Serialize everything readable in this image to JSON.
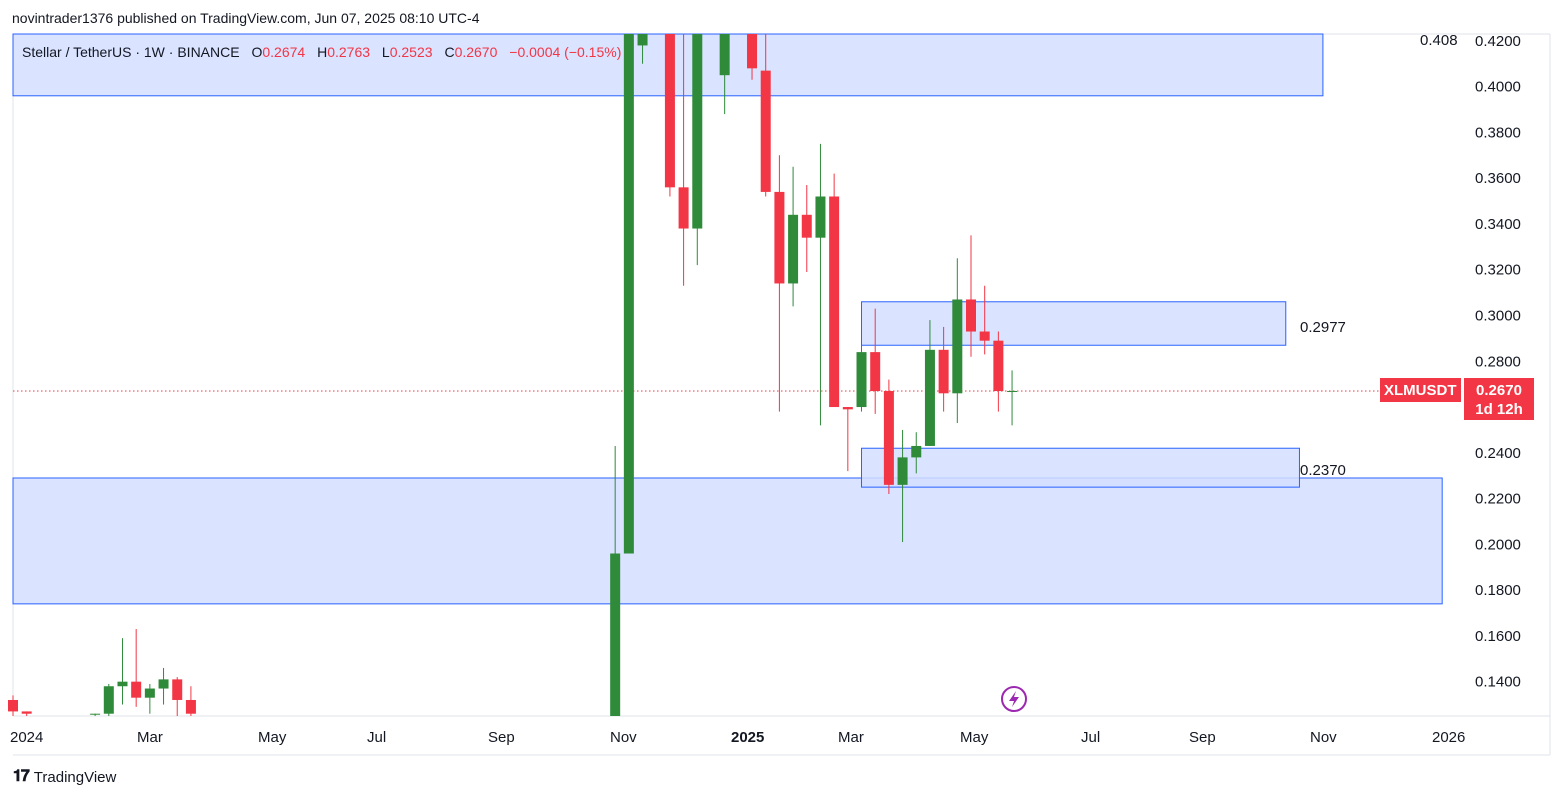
{
  "header": {
    "publish_text": "novintrader1376 published on TradingView.com, Jun 07, 2025 08:10 UTC-4"
  },
  "legend": {
    "symbol": "Stellar / TetherUS · 1W · BINANCE",
    "open_label": "O",
    "open": "0.2674",
    "high_label": "H",
    "high": "0.2763",
    "low_label": "L",
    "low": "0.2523",
    "close_label": "C",
    "close": "0.2670",
    "change": "−0.0004 (−0.15%)"
  },
  "price_tag": {
    "symbol": "XLMUSDT",
    "price": "0.2670",
    "countdown": "1d 12h"
  },
  "top_axis_extra": "0.408",
  "zone_labels": {
    "upper": "0.2977",
    "lower": "0.2370"
  },
  "brand": {
    "name": "TradingView"
  },
  "colors": {
    "up": "#2f8a3a",
    "down": "#f23645",
    "zone_fill": "#d4deff",
    "zone_stroke": "#2962ff",
    "price_line": "#f23645"
  },
  "chart_data": {
    "type": "candlestick",
    "timeframe": "1W",
    "y_axis": {
      "ticks": [
        0.14,
        0.16,
        0.18,
        0.2,
        0.22,
        0.24,
        0.26,
        0.28,
        0.3,
        0.32,
        0.34,
        0.36,
        0.38,
        0.4,
        0.42
      ],
      "tick_labels": [
        "0.1400",
        "0.1600",
        "0.1800",
        "0.2000",
        "0.2200",
        "0.2400",
        "0.2600",
        "0.2800",
        "0.3000",
        "0.3200",
        "0.3400",
        "0.3600",
        "0.3800",
        "0.4000",
        "0.4200"
      ],
      "range": [
        0.125,
        0.423
      ]
    },
    "x_axis": {
      "labels": [
        "2024",
        "Mar",
        "May",
        "Jul",
        "Sep",
        "Nov",
        "2025",
        "Mar",
        "May",
        "Jul",
        "Sep",
        "Nov",
        "2026"
      ],
      "bold_labels": [
        "2025"
      ]
    },
    "current_price": 0.267,
    "zones": [
      {
        "from": 0.396,
        "to": 0.423,
        "start": "2024-01",
        "end": "2025-11"
      },
      {
        "from": 0.174,
        "to": 0.229,
        "start": "2024-01",
        "end": "2026-01"
      },
      {
        "from": 0.287,
        "to": 0.306,
        "start": "2025-03-10",
        "end": "2025-10-13"
      },
      {
        "from": 0.225,
        "to": 0.242,
        "start": "2025-03-10",
        "end": "2025-10-20"
      }
    ],
    "candles": [
      {
        "date": "2024-01-01",
        "o": 0.132,
        "h": 0.134,
        "l": 0.125,
        "c": 0.127
      },
      {
        "date": "2024-01-08",
        "o": 0.127,
        "h": 0.127,
        "l": 0.125,
        "c": 0.126
      },
      {
        "date": "2024-02-12",
        "o": 0.126,
        "h": 0.126,
        "l": 0.125,
        "c": 0.126
      },
      {
        "date": "2024-02-19",
        "o": 0.126,
        "h": 0.139,
        "l": 0.125,
        "c": 0.138
      },
      {
        "date": "2024-02-26",
        "o": 0.138,
        "h": 0.159,
        "l": 0.13,
        "c": 0.14
      },
      {
        "date": "2024-03-04",
        "o": 0.14,
        "h": 0.163,
        "l": 0.129,
        "c": 0.133
      },
      {
        "date": "2024-03-11",
        "o": 0.133,
        "h": 0.139,
        "l": 0.126,
        "c": 0.137
      },
      {
        "date": "2024-03-18",
        "o": 0.137,
        "h": 0.146,
        "l": 0.13,
        "c": 0.141
      },
      {
        "date": "2024-03-25",
        "o": 0.141,
        "h": 0.142,
        "l": 0.125,
        "c": 0.132
      },
      {
        "date": "2024-04-01",
        "o": 0.132,
        "h": 0.138,
        "l": 0.125,
        "c": 0.126
      },
      {
        "date": "2024-11-04",
        "o": 0.125,
        "h": 0.243,
        "l": 0.125,
        "c": 0.196
      },
      {
        "date": "2024-11-11",
        "o": 0.196,
        "h": 0.423,
        "l": 0.196,
        "c": 0.423
      },
      {
        "date": "2024-11-18",
        "o": 0.418,
        "h": 0.423,
        "l": 0.41,
        "c": 0.423
      },
      {
        "date": "2024-12-02",
        "o": 0.423,
        "h": 0.423,
        "l": 0.352,
        "c": 0.356
      },
      {
        "date": "2024-12-09",
        "o": 0.356,
        "h": 0.423,
        "l": 0.313,
        "c": 0.338
      },
      {
        "date": "2024-12-16",
        "o": 0.338,
        "h": 0.423,
        "l": 0.322,
        "c": 0.423
      },
      {
        "date": "2024-12-30",
        "o": 0.405,
        "h": 0.423,
        "l": 0.388,
        "c": 0.423
      },
      {
        "date": "2025-01-13",
        "o": 0.423,
        "h": 0.423,
        "l": 0.403,
        "c": 0.408
      },
      {
        "date": "2025-01-20",
        "o": 0.407,
        "h": 0.423,
        "l": 0.352,
        "c": 0.354
      },
      {
        "date": "2025-01-27",
        "o": 0.354,
        "h": 0.37,
        "l": 0.258,
        "c": 0.314
      },
      {
        "date": "2025-02-03",
        "o": 0.314,
        "h": 0.365,
        "l": 0.304,
        "c": 0.344
      },
      {
        "date": "2025-02-10",
        "o": 0.344,
        "h": 0.357,
        "l": 0.319,
        "c": 0.334
      },
      {
        "date": "2025-02-17",
        "o": 0.334,
        "h": 0.375,
        "l": 0.252,
        "c": 0.352
      },
      {
        "date": "2025-02-24",
        "o": 0.352,
        "h": 0.362,
        "l": 0.26,
        "c": 0.26
      },
      {
        "date": "2025-03-03",
        "o": 0.26,
        "h": 0.26,
        "l": 0.232,
        "c": 0.259
      },
      {
        "date": "2025-03-10",
        "o": 0.26,
        "h": 0.299,
        "l": 0.258,
        "c": 0.284
      },
      {
        "date": "2025-03-17",
        "o": 0.284,
        "h": 0.303,
        "l": 0.257,
        "c": 0.267
      },
      {
        "date": "2025-03-24",
        "o": 0.267,
        "h": 0.272,
        "l": 0.222,
        "c": 0.226
      },
      {
        "date": "2025-03-31",
        "o": 0.226,
        "h": 0.25,
        "l": 0.201,
        "c": 0.238
      },
      {
        "date": "2025-04-07",
        "o": 0.238,
        "h": 0.249,
        "l": 0.231,
        "c": 0.243
      },
      {
        "date": "2025-04-14",
        "o": 0.243,
        "h": 0.298,
        "l": 0.243,
        "c": 0.285
      },
      {
        "date": "2025-04-21",
        "o": 0.285,
        "h": 0.295,
        "l": 0.258,
        "c": 0.266
      },
      {
        "date": "2025-04-28",
        "o": 0.266,
        "h": 0.325,
        "l": 0.253,
        "c": 0.307
      },
      {
        "date": "2025-05-05",
        "o": 0.307,
        "h": 0.335,
        "l": 0.282,
        "c": 0.293
      },
      {
        "date": "2025-05-12",
        "o": 0.293,
        "h": 0.313,
        "l": 0.283,
        "c": 0.289
      },
      {
        "date": "2025-05-19",
        "o": 0.289,
        "h": 0.293,
        "l": 0.258,
        "c": 0.267
      },
      {
        "date": "2025-05-26",
        "o": 0.267,
        "h": 0.276,
        "l": 0.252,
        "c": 0.267
      }
    ]
  }
}
